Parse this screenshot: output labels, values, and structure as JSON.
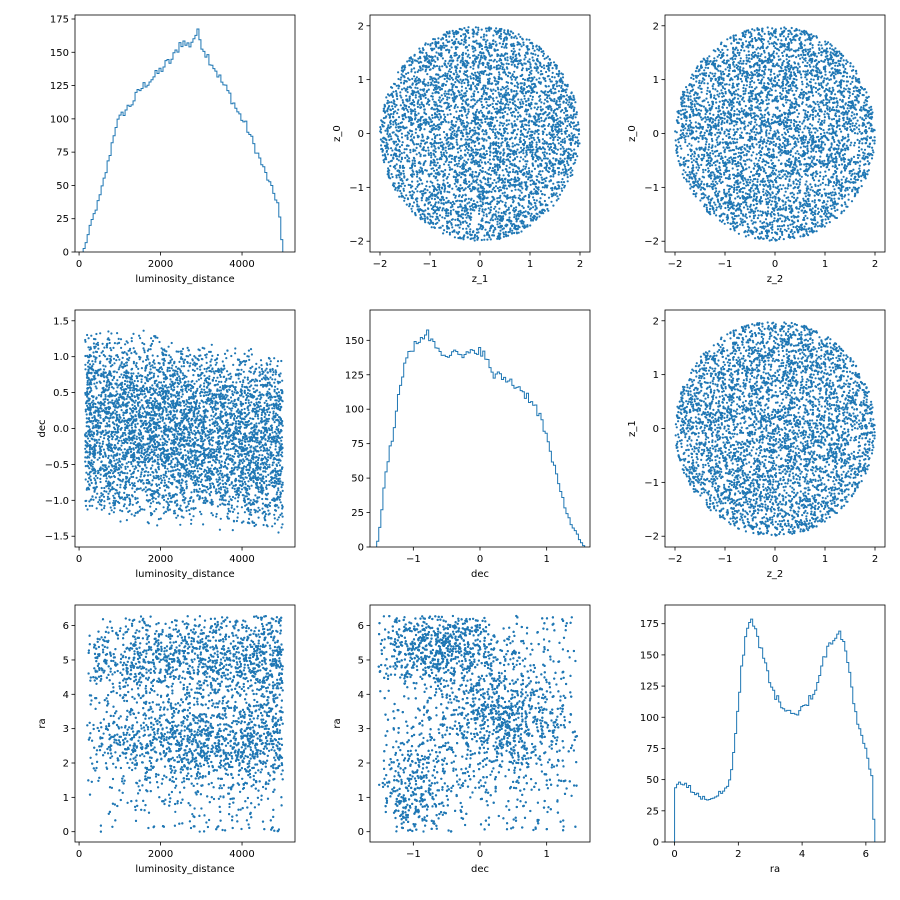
{
  "chart_data": [
    {
      "type": "histogram",
      "variable": "luminosity_distance",
      "xlabel": "luminosity_distance",
      "ylabel": "",
      "xlim": [
        -100,
        5300
      ],
      "ylim": [
        0,
        178
      ],
      "xticks": [
        0,
        2000,
        4000
      ],
      "yticks": [
        0,
        25,
        50,
        75,
        100,
        125,
        150,
        175
      ],
      "color": "#1f77b4",
      "curve": [
        [
          100,
          0
        ],
        [
          200,
          10
        ],
        [
          300,
          22
        ],
        [
          500,
          40
        ],
        [
          700,
          65
        ],
        [
          900,
          95
        ],
        [
          1100,
          105
        ],
        [
          1300,
          112
        ],
        [
          1500,
          122
        ],
        [
          1700,
          128
        ],
        [
          1900,
          133
        ],
        [
          2100,
          140
        ],
        [
          2300,
          145
        ],
        [
          2500,
          158
        ],
        [
          2700,
          155
        ],
        [
          2900,
          165
        ],
        [
          3100,
          150
        ],
        [
          3300,
          140
        ],
        [
          3500,
          128
        ],
        [
          3700,
          118
        ],
        [
          3900,
          105
        ],
        [
          4100,
          95
        ],
        [
          4300,
          80
        ],
        [
          4500,
          65
        ],
        [
          4700,
          50
        ],
        [
          4900,
          35
        ],
        [
          5000,
          0
        ]
      ]
    },
    {
      "type": "scatter",
      "xlabel": "z_1",
      "ylabel": "z_0",
      "xlim": [
        -2.2,
        2.2
      ],
      "ylim": [
        -2.2,
        2.2
      ],
      "xticks": [
        -2,
        -1,
        0,
        1,
        2
      ],
      "yticks": [
        -2,
        -1,
        0,
        1,
        2
      ],
      "distribution": "uniform disk of radius 2 centred at (0, 0)",
      "color": "#1f77b4"
    },
    {
      "type": "scatter",
      "xlabel": "z_2",
      "ylabel": "z_0",
      "xlim": [
        -2.2,
        2.2
      ],
      "ylim": [
        -2.2,
        2.2
      ],
      "xticks": [
        -2,
        -1,
        0,
        1,
        2
      ],
      "yticks": [
        -2,
        -1,
        0,
        1,
        2
      ],
      "distribution": "uniform disk of radius 2 centred at (0, 0)",
      "color": "#1f77b4"
    },
    {
      "type": "scatter",
      "xlabel": "luminosity_distance",
      "ylabel": "dec",
      "xlim": [
        -100,
        5300
      ],
      "ylim": [
        -1.65,
        1.65
      ],
      "xticks": [
        0,
        2000,
        4000
      ],
      "yticks": [
        -1.5,
        -1.0,
        -0.5,
        0.0,
        0.5,
        1.0,
        1.5
      ],
      "x_range": [
        150,
        5000
      ],
      "dec_range_at_low_distance": [
        -1.3,
        1.5
      ],
      "dec_range_at_high_distance": [
        -1.5,
        1.05
      ],
      "color": "#1f77b4"
    },
    {
      "type": "histogram",
      "variable": "dec",
      "xlabel": "dec",
      "ylabel": "",
      "xlim": [
        -1.65,
        1.65
      ],
      "ylim": [
        0,
        172
      ],
      "xticks": [
        -1,
        0,
        1
      ],
      "yticks": [
        0,
        25,
        50,
        75,
        100,
        125,
        150
      ],
      "color": "#1f77b4",
      "curve": [
        [
          -1.55,
          0
        ],
        [
          -1.5,
          15
        ],
        [
          -1.45,
          38
        ],
        [
          -1.4,
          58
        ],
        [
          -1.35,
          72
        ],
        [
          -1.3,
          82
        ],
        [
          -1.25,
          100
        ],
        [
          -1.2,
          118
        ],
        [
          -1.15,
          128
        ],
        [
          -1.1,
          135
        ],
        [
          -0.95,
          150
        ],
        [
          -0.8,
          155
        ],
        [
          -0.6,
          143
        ],
        [
          -0.4,
          140
        ],
        [
          -0.2,
          138
        ],
        [
          0.0,
          145
        ],
        [
          0.2,
          125
        ],
        [
          0.4,
          122
        ],
        [
          0.6,
          115
        ],
        [
          0.8,
          105
        ],
        [
          0.9,
          95
        ],
        [
          1.0,
          80
        ],
        [
          1.1,
          60
        ],
        [
          1.2,
          42
        ],
        [
          1.3,
          25
        ],
        [
          1.4,
          14
        ],
        [
          1.5,
          5
        ],
        [
          1.57,
          0
        ]
      ]
    },
    {
      "type": "scatter",
      "xlabel": "z_2",
      "ylabel": "z_1",
      "xlim": [
        -2.2,
        2.2
      ],
      "ylim": [
        -2.2,
        2.2
      ],
      "xticks": [
        -2,
        -1,
        0,
        1,
        2
      ],
      "yticks": [
        -2,
        -1,
        0,
        1,
        2
      ],
      "distribution": "uniform disk of radius 2 centred at (0, 0)",
      "color": "#1f77b4"
    },
    {
      "type": "scatter",
      "xlabel": "luminosity_distance",
      "ylabel": "ra",
      "xlim": [
        -100,
        5300
      ],
      "ylim": [
        -0.3,
        6.6
      ],
      "xticks": [
        0,
        2000,
        4000
      ],
      "yticks": [
        0,
        1,
        2,
        3,
        4,
        5,
        6
      ],
      "x_range": [
        200,
        5000
      ],
      "ra_range": [
        0,
        6.28
      ],
      "bands": [
        {
          "ra": 2.6,
          "weight": 0.45
        },
        {
          "ra": 5.0,
          "weight": 0.35
        }
      ],
      "color": "#1f77b4"
    },
    {
      "type": "scatter",
      "xlabel": "dec",
      "ylabel": "ra",
      "xlim": [
        -1.65,
        1.65
      ],
      "ylim": [
        -0.3,
        6.6
      ],
      "xticks": [
        -1,
        0,
        1
      ],
      "yticks": [
        0,
        1,
        2,
        3,
        4,
        5,
        6
      ],
      "dec_range": [
        -1.5,
        1.5
      ],
      "ra_range": [
        0,
        6.28
      ],
      "color": "#1f77b4"
    },
    {
      "type": "histogram",
      "variable": "ra",
      "xlabel": "ra",
      "ylabel": "",
      "xlim": [
        -0.3,
        6.6
      ],
      "ylim": [
        0,
        190
      ],
      "xticks": [
        0,
        2,
        4,
        6
      ],
      "yticks": [
        0,
        25,
        50,
        75,
        100,
        125,
        150,
        175
      ],
      "color": "#1f77b4",
      "curve": [
        [
          0.0,
          0
        ],
        [
          0.02,
          45
        ],
        [
          0.3,
          48
        ],
        [
          0.6,
          40
        ],
        [
          0.9,
          35
        ],
        [
          1.2,
          35
        ],
        [
          1.5,
          40
        ],
        [
          1.7,
          45
        ],
        [
          1.85,
          70
        ],
        [
          2.0,
          110
        ],
        [
          2.15,
          150
        ],
        [
          2.3,
          175
        ],
        [
          2.45,
          180
        ],
        [
          2.6,
          165
        ],
        [
          2.8,
          145
        ],
        [
          3.0,
          130
        ],
        [
          3.2,
          115
        ],
        [
          3.5,
          105
        ],
        [
          3.8,
          100
        ],
        [
          4.1,
          110
        ],
        [
          4.4,
          120
        ],
        [
          4.6,
          140
        ],
        [
          4.8,
          155
        ],
        [
          5.0,
          165
        ],
        [
          5.2,
          170
        ],
        [
          5.35,
          158
        ],
        [
          5.5,
          135
        ],
        [
          5.7,
          100
        ],
        [
          5.9,
          80
        ],
        [
          6.05,
          70
        ],
        [
          6.2,
          50
        ],
        [
          6.28,
          0
        ]
      ]
    }
  ]
}
